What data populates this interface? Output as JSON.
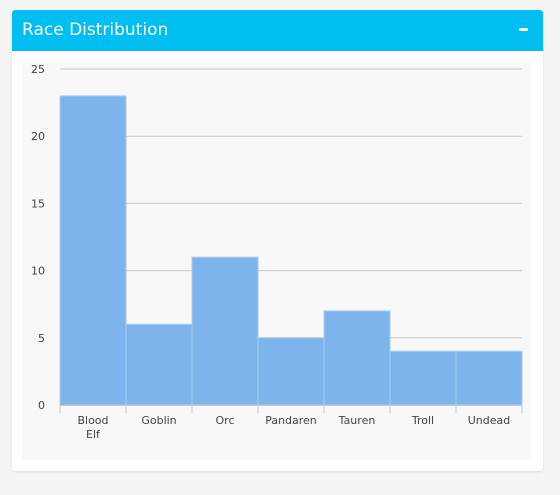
{
  "panel": {
    "title": "Race Distribution",
    "collapse_icon": "minus-icon"
  },
  "colors": {
    "header": "#00bff0",
    "bar_fill": "#7eb4ec",
    "bar_stroke": "#aaccf2",
    "grid": "#c8c8c8",
    "axis_text": "#444444",
    "chart_bg": "#f8f8f8"
  },
  "chart_data": {
    "type": "bar",
    "categories": [
      "Blood Elf",
      "Goblin",
      "Orc",
      "Pandaren",
      "Tauren",
      "Troll",
      "Undead"
    ],
    "values": [
      23,
      6,
      11,
      5,
      7,
      4,
      4
    ],
    "ylim": [
      0,
      25
    ],
    "yticks": [
      "0",
      "5",
      "10",
      "15",
      "20",
      "25"
    ],
    "grid": true,
    "legend": "none"
  }
}
